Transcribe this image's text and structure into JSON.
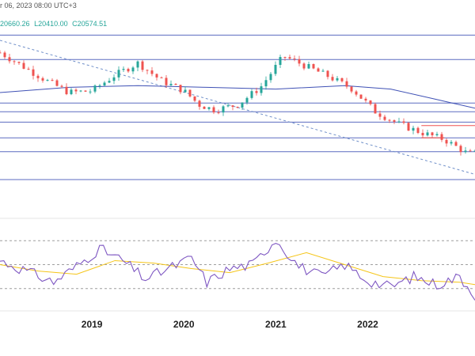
{
  "header": {
    "session": "r 06, 2023 08:00 UTC+3",
    "ohlc": [
      "20660.26",
      "L20410.00",
      "C20574.51"
    ]
  },
  "colors": {
    "up": "#26a69a",
    "down": "#ef5350",
    "ma": "#3f51b5",
    "hline": "#5c6bc0",
    "trendline": "#6f8fc9",
    "rsi": "#7e57c2",
    "rsi_ma": "#f5c518",
    "red_line": "#ef5350"
  },
  "chart_data": [
    {
      "type": "candlestick",
      "title": "",
      "xlabel": "",
      "ylabel": "",
      "xlim": [
        "2018-01",
        "2023-03"
      ],
      "ylim": [
        0,
        100
      ],
      "x_ticks": [
        "2019",
        "2020",
        "2021",
        "2022"
      ],
      "price_path": {
        "date": [
          "2018-01",
          "2018-04",
          "2018-07",
          "2018-10",
          "2019-01",
          "2019-04",
          "2019-07",
          "2019-10",
          "2020-01",
          "2020-03",
          "2020-05",
          "2020-08",
          "2020-11",
          "2021-02",
          "2021-05",
          "2021-08",
          "2021-11",
          "2022-02",
          "2022-05",
          "2022-08",
          "2022-11",
          "2023-02"
        ],
        "close": [
          88,
          80,
          72,
          65,
          66,
          75,
          82,
          72,
          66,
          58,
          55,
          58,
          68,
          86,
          80,
          74,
          67,
          54,
          47,
          42,
          38,
          30
        ]
      },
      "moving_average": {
        "date": [
          "2018-01",
          "2018-10",
          "2019-07",
          "2020-04",
          "2021-01",
          "2021-10",
          "2022-04",
          "2022-10",
          "2023-03"
        ],
        "value": [
          65,
          68,
          69,
          68,
          67,
          69,
          67,
          61,
          56
        ]
      },
      "horizontal_levels": [
        98,
        84,
        59,
        54,
        48,
        39,
        31,
        15
      ],
      "trendline": {
        "start": [
          "2018-01",
          95
        ],
        "end": [
          "2023-03",
          18
        ]
      },
      "resistance_segment": {
        "start": [
          "2022-08",
          46
        ],
        "end": [
          "2023-03",
          46
        ]
      },
      "support_segment": {
        "start": [
          "2022-08",
          39
        ],
        "end": [
          "2022-11",
          39
        ]
      }
    },
    {
      "type": "line",
      "title": "",
      "xlabel": "",
      "ylabel": "",
      "ylim": [
        0,
        100
      ],
      "x_ticks": [
        "2019",
        "2020",
        "2021",
        "2022"
      ],
      "levels": [
        80,
        50,
        20
      ],
      "series": [
        {
          "x": [
            "2018-01",
            "2018-05",
            "2018-08",
            "2018-11",
            "2019-02",
            "2019-05",
            "2019-08",
            "2019-11",
            "2020-02",
            "2020-04",
            "2020-07",
            "2020-10",
            "2021-01",
            "2021-04",
            "2021-07",
            "2021-10",
            "2022-01",
            "2022-04",
            "2022-07",
            "2022-10",
            "2023-01",
            "2023-03"
          ],
          "values": [
            55,
            40,
            28,
            48,
            70,
            55,
            32,
            45,
            58,
            28,
            45,
            50,
            82,
            48,
            35,
            50,
            30,
            22,
            35,
            25,
            35,
            12
          ]
        },
        {
          "x": [
            "2018-01",
            "2018-06",
            "2018-11",
            "2019-04",
            "2019-09",
            "2020-02",
            "2020-07",
            "2020-12",
            "2021-05",
            "2021-10",
            "2022-03",
            "2022-08",
            "2023-01",
            "2023-03"
          ],
          "values": [
            50,
            42,
            38,
            55,
            52,
            45,
            40,
            52,
            65,
            50,
            35,
            30,
            28,
            25
          ]
        }
      ]
    }
  ]
}
